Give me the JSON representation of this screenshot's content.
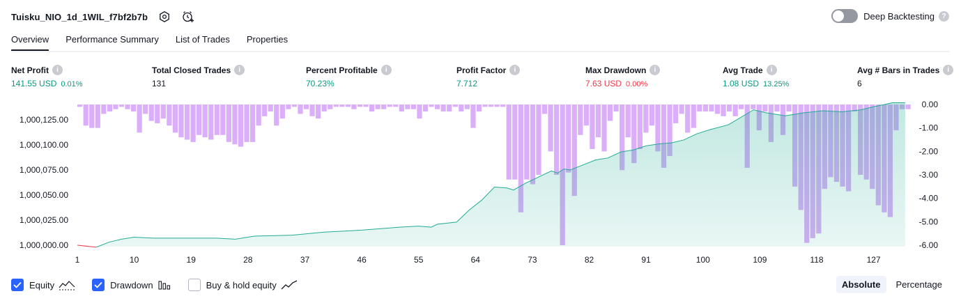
{
  "header": {
    "strategy_name": "Tuisku_NIO_1d_1WIL_f7bf2b7b",
    "icons": [
      "settings-hexagon-icon",
      "alarm-add-icon"
    ],
    "deep_backtesting_label": "Deep Backtesting",
    "deep_backtesting_enabled": false
  },
  "tabs": [
    {
      "label": "Overview",
      "active": true
    },
    {
      "label": "Performance Summary",
      "active": false
    },
    {
      "label": "List of Trades",
      "active": false
    },
    {
      "label": "Properties",
      "active": false
    }
  ],
  "metrics": {
    "net_profit": {
      "label": "Net Profit",
      "value": "141.55 USD",
      "sub": "0.01%"
    },
    "total_closed_trades": {
      "label": "Total Closed Trades",
      "value": "131"
    },
    "percent_profitable": {
      "label": "Percent Profitable",
      "value": "70.23%"
    },
    "profit_factor": {
      "label": "Profit Factor",
      "value": "7.712"
    },
    "max_drawdown": {
      "label": "Max Drawdown",
      "value": "7.63 USD",
      "sub": "0.00%"
    },
    "avg_trade": {
      "label": "Avg Trade",
      "value": "1.08 USD",
      "sub": "13.25%"
    },
    "avg_bars": {
      "label": "Avg # Bars in Trades",
      "value": "6"
    }
  },
  "colors": {
    "positive": "#089981",
    "negative": "#f23645",
    "equity_line": "#22ab94",
    "equity_fill": "#22ab94",
    "drawdown_bar": "#ce93f5",
    "accent": "#2962ff"
  },
  "chart_data": {
    "type": "area+bar",
    "x_ticks": [
      "1",
      "10",
      "19",
      "28",
      "37",
      "46",
      "55",
      "64",
      "73",
      "82",
      "91",
      "100",
      "109",
      "118",
      "127"
    ],
    "x_range": [
      1,
      133
    ],
    "left_axis": {
      "ticks": [
        "1,000,125.00",
        "1,000,100.00",
        "1,000,075.00",
        "1,000,050.00",
        "1,000,025.00",
        "1,000,000.00"
      ],
      "range": [
        999999,
        1000143
      ]
    },
    "right_axis": {
      "ticks": [
        "0.00",
        "-1.00",
        "-2.00",
        "-3.00",
        "-4.00",
        "-5.00",
        "-6.00"
      ],
      "range": [
        -6.0,
        0.0
      ]
    },
    "equity_points": [
      [
        1,
        1000000
      ],
      [
        4,
        999998
      ],
      [
        6,
        1000003
      ],
      [
        8,
        1000006
      ],
      [
        10,
        1000008
      ],
      [
        13,
        1000007
      ],
      [
        18,
        1000007
      ],
      [
        23,
        1000007
      ],
      [
        26,
        1000006
      ],
      [
        29,
        1000009
      ],
      [
        35,
        1000010
      ],
      [
        40,
        1000013
      ],
      [
        46,
        1000015
      ],
      [
        52,
        1000018
      ],
      [
        55,
        1000019
      ],
      [
        57,
        1000018
      ],
      [
        58,
        1000021
      ],
      [
        61,
        1000023
      ],
      [
        63,
        1000035
      ],
      [
        65,
        1000045
      ],
      [
        67,
        1000058
      ],
      [
        69,
        1000057
      ],
      [
        70,
        1000055
      ],
      [
        72,
        1000062
      ],
      [
        74,
        1000068
      ],
      [
        76,
        1000074
      ],
      [
        77,
        1000072
      ],
      [
        78,
        1000076
      ],
      [
        79,
        1000075
      ],
      [
        81,
        1000080
      ],
      [
        83,
        1000085
      ],
      [
        85,
        1000087
      ],
      [
        87,
        1000093
      ],
      [
        89,
        1000095
      ],
      [
        91,
        1000099
      ],
      [
        93,
        1000101
      ],
      [
        95,
        1000102
      ],
      [
        97,
        1000105
      ],
      [
        99,
        1000111
      ],
      [
        101,
        1000115
      ],
      [
        104,
        1000120
      ],
      [
        108,
        1000135
      ],
      [
        110,
        1000132
      ],
      [
        113,
        1000129
      ],
      [
        116,
        1000132
      ],
      [
        119,
        1000134
      ],
      [
        122,
        1000133
      ],
      [
        125,
        1000135
      ],
      [
        127,
        1000138
      ],
      [
        130,
        1000142
      ],
      [
        132,
        1000142
      ]
    ],
    "drawdown_values": [
      -0.1,
      -0.9,
      -1.0,
      -1.0,
      -0.4,
      -0.3,
      -0.2,
      -0.1,
      -0.2,
      -0.3,
      -1.2,
      -0.4,
      -0.7,
      -0.8,
      -0.6,
      -0.9,
      -1.2,
      -1.4,
      -1.5,
      -1.6,
      -1.3,
      -1.4,
      -1.5,
      -1.3,
      -1.3,
      -1.6,
      -1.7,
      -1.8,
      -1.6,
      -1.6,
      -0.9,
      -0.5,
      -0.3,
      -0.9,
      -0.6,
      -0.2,
      -0.1,
      -0.4,
      -0.2,
      -0.5,
      -0.6,
      -0.3,
      -0.2,
      -0.1,
      -0.1,
      -0.1,
      -0.2,
      -0.1,
      -0.1,
      -0.3,
      -0.2,
      -0.2,
      -0.1,
      -0.1,
      -0.3,
      -0.2,
      -0.2,
      -0.6,
      -0.3,
      -0.1,
      -0.2,
      -0.3,
      -0.3,
      -0.1,
      -0.3,
      -0.2,
      -1.0,
      -0.3,
      -0.1,
      -0.1,
      -0.1,
      -0.1,
      -3.2,
      -3.2,
      -4.6,
      -3.2,
      -3.4,
      -3.0,
      -0.4,
      -2.0,
      -3.0,
      -6.0,
      -2.9,
      -3.9,
      -1.3,
      -0.9,
      -1.9,
      -1.4,
      -2.0,
      -0.7,
      -0.3,
      -2.8,
      -1.4,
      -2.5,
      -1.9,
      -1.2,
      -0.9,
      -2.0,
      -2.7,
      -2.2,
      -0.8,
      -0.4,
      -1.2,
      -1.0,
      -0.3,
      -0.3,
      -0.3,
      -0.4,
      -0.5,
      -0.3,
      -0.5,
      -0.2,
      -2.7,
      -0.2,
      -1.1,
      -0.3,
      -1.6,
      -0.3,
      -1.3,
      -0.3,
      -3.5,
      -4.5,
      -5.9,
      -5.7,
      -5.5,
      -3.6,
      -3.1,
      -3.3,
      -3.5,
      -3.7,
      -0.3,
      -3.0,
      -3.2,
      -3.6,
      -4.3,
      -4.6,
      -4.8,
      -1.1,
      -0.2,
      -0.2
    ],
    "grid": false
  },
  "footer": {
    "legend": [
      {
        "label": "Equity",
        "checked": true,
        "glyph": "equity-area-icon"
      },
      {
        "label": "Drawdown",
        "checked": true,
        "glyph": "drawdown-bars-icon"
      },
      {
        "label": "Buy & hold equity",
        "checked": false,
        "glyph": "buy-hold-line-icon"
      }
    ],
    "modes": [
      {
        "label": "Absolute",
        "active": true
      },
      {
        "label": "Percentage",
        "active": false
      }
    ]
  }
}
